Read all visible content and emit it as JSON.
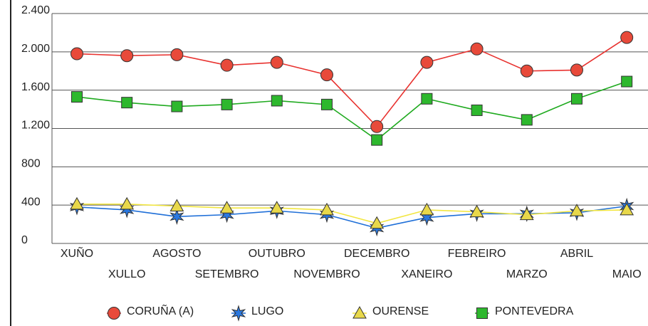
{
  "chart_data": {
    "type": "line",
    "categories": [
      "XUÑO",
      "XULLO",
      "AGOSTO",
      "SETEMBRO",
      "OUTUBRO",
      "NOVEMBRO",
      "DECEMBRO",
      "XANEIRO",
      "FEBREIRO",
      "MARZO",
      "ABRIL",
      "MAIO"
    ],
    "series": [
      {
        "name": "CORUÑA (A)",
        "color": "#e8322f",
        "marker_color": "#e84a3a",
        "marker": "circle",
        "values": [
          1980,
          1960,
          1970,
          1860,
          1890,
          1760,
          1220,
          1890,
          2030,
          1800,
          1810,
          2150
        ]
      },
      {
        "name": "LUGO",
        "color": "#1f6fd8",
        "marker_color": "#2a78e0",
        "marker": "star",
        "values": [
          380,
          350,
          280,
          300,
          340,
          300,
          160,
          270,
          310,
          310,
          320,
          390
        ]
      },
      {
        "name": "OURENSE",
        "color": "#f2e640",
        "marker_color": "#e8d84a",
        "marker": "triangle",
        "values": [
          410,
          410,
          390,
          370,
          370,
          350,
          210,
          350,
          330,
          300,
          340,
          350
        ]
      },
      {
        "name": "PONTEVEDRA",
        "color": "#1faa1f",
        "marker_color": "#2db82d",
        "marker": "square",
        "values": [
          1530,
          1470,
          1430,
          1450,
          1490,
          1450,
          1080,
          1510,
          1390,
          1290,
          1510,
          1690
        ]
      }
    ],
    "ylim": [
      0,
      2400
    ],
    "yticks": [
      0,
      400,
      800,
      {
        "value": 1200,
        "label": "1.200"
      },
      {
        "value": 1600,
        "label": "1.600"
      },
      {
        "value": 2000,
        "label": "2.000"
      },
      {
        "value": 2400,
        "label": "2.400"
      }
    ],
    "grid": true,
    "legend": "bottom"
  }
}
